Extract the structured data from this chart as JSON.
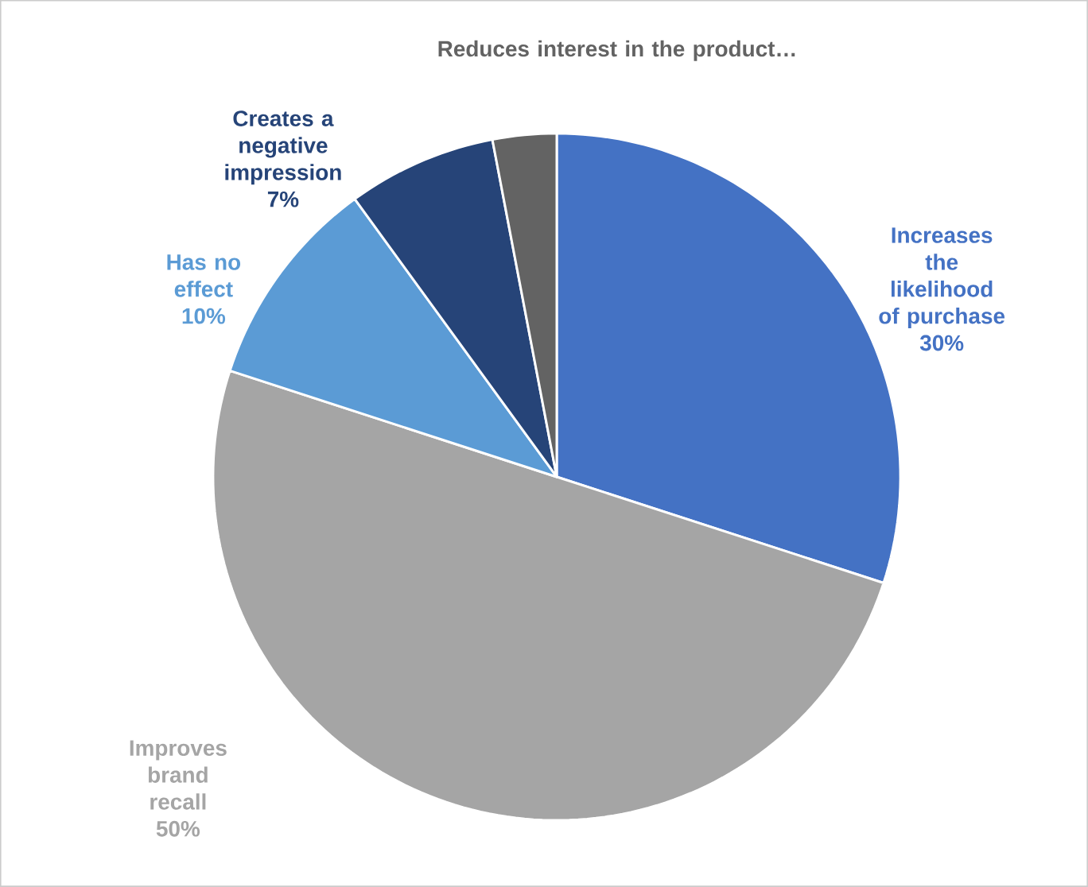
{
  "chart_data": {
    "type": "pie",
    "categories": [
      "Increases the likelihood of purchase",
      "Improves brand recall",
      "Has no effect",
      "Creates a negative impression",
      "Reduces interest in the product…"
    ],
    "values": [
      30,
      50,
      10,
      7,
      3
    ],
    "colors": [
      "#4472c4",
      "#a5a5a5",
      "#5b9bd5",
      "#264478",
      "#636363"
    ],
    "value_labels": [
      "30%",
      "50%",
      "10%",
      "7%",
      null
    ]
  }
}
